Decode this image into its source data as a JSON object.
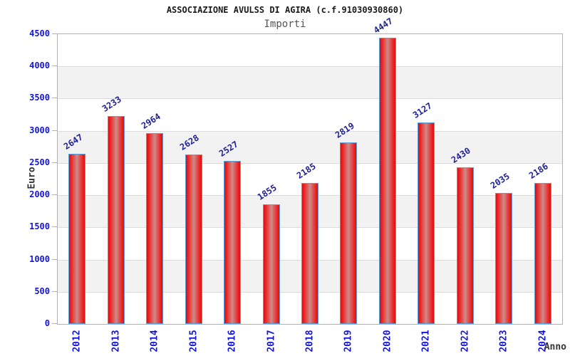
{
  "header": {
    "title": "ASSOCIAZIONE AVULSS DI AGIRA (c.f.91030930860)",
    "subtitle": "Importi"
  },
  "chart_data": {
    "type": "bar",
    "title": "ASSOCIAZIONE AVULSS DI AGIRA (c.f.91030930860)",
    "subtitle": "Importi",
    "categories": [
      "2012",
      "2013",
      "2014",
      "2015",
      "2016",
      "2017",
      "2018",
      "2019",
      "2020",
      "2021",
      "2022",
      "2023",
      "2024"
    ],
    "values": [
      2647,
      3233,
      2964,
      2628,
      2527,
      1855,
      2185,
      2819,
      4447,
      3127,
      2430,
      2035,
      2186
    ],
    "xlabel": "Anno",
    "ylabel": "Euro",
    "ylim": [
      0,
      4500
    ],
    "ytick_step": 500,
    "y_ticks": [
      0,
      500,
      1000,
      1500,
      2000,
      2500,
      3000,
      3500,
      4000,
      4500
    ],
    "grid": true,
    "legend": false,
    "value_labels_rotated": true,
    "colors": {
      "bar_edge_red": "#d11212",
      "bar_center_pink": "#cd8a8a",
      "bar_border_blue": "#5ba0dd",
      "axis_tick_blue": "#1414dd",
      "value_label_navy": "#20209a",
      "axis_title_gray": "#333333",
      "band_gray": "#f2f2f2",
      "gridline_gray": "#dcdcdc",
      "frame_gray": "#b0b0b0",
      "subtitle_gray": "#555555",
      "title_black": "#1a1a1a"
    }
  }
}
